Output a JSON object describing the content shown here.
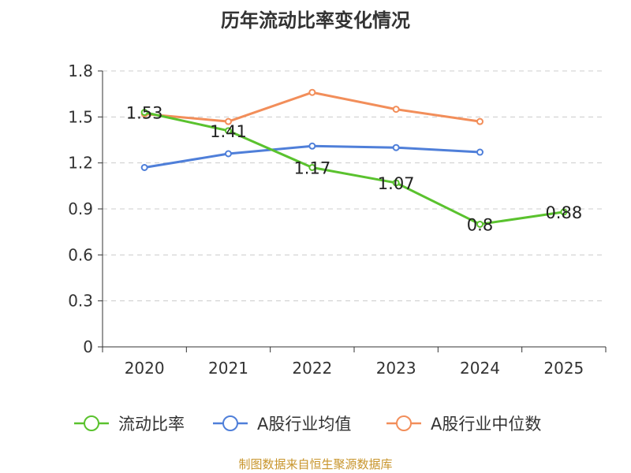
{
  "chart_data": {
    "type": "line",
    "title": "历年流动比率变化情况",
    "categories": [
      "2020",
      "2021",
      "2022",
      "2023",
      "2024",
      "2025"
    ],
    "y_ticks": [
      "0",
      "0.3",
      "0.6",
      "0.9",
      "1.2",
      "1.5",
      "1.8"
    ],
    "ylim": [
      0,
      1.8
    ],
    "grid": true,
    "series": [
      {
        "name": "流动比率",
        "color": "#5ac22e",
        "values": [
          1.53,
          1.41,
          1.17,
          1.07,
          0.8,
          0.88
        ],
        "labels": [
          "1.53",
          "1.41",
          "1.17",
          "1.07",
          "0.8",
          "0.88"
        ]
      },
      {
        "name": "A股行业均值",
        "color": "#4f7fd9",
        "values": [
          1.17,
          1.26,
          1.31,
          1.3,
          1.27,
          null
        ]
      },
      {
        "name": "A股行业中位数",
        "color": "#f28e5a",
        "values": [
          1.52,
          1.47,
          1.66,
          1.55,
          1.47,
          null
        ]
      }
    ],
    "legend_position": "bottom",
    "source": "制图数据来自恒生聚源数据库"
  }
}
